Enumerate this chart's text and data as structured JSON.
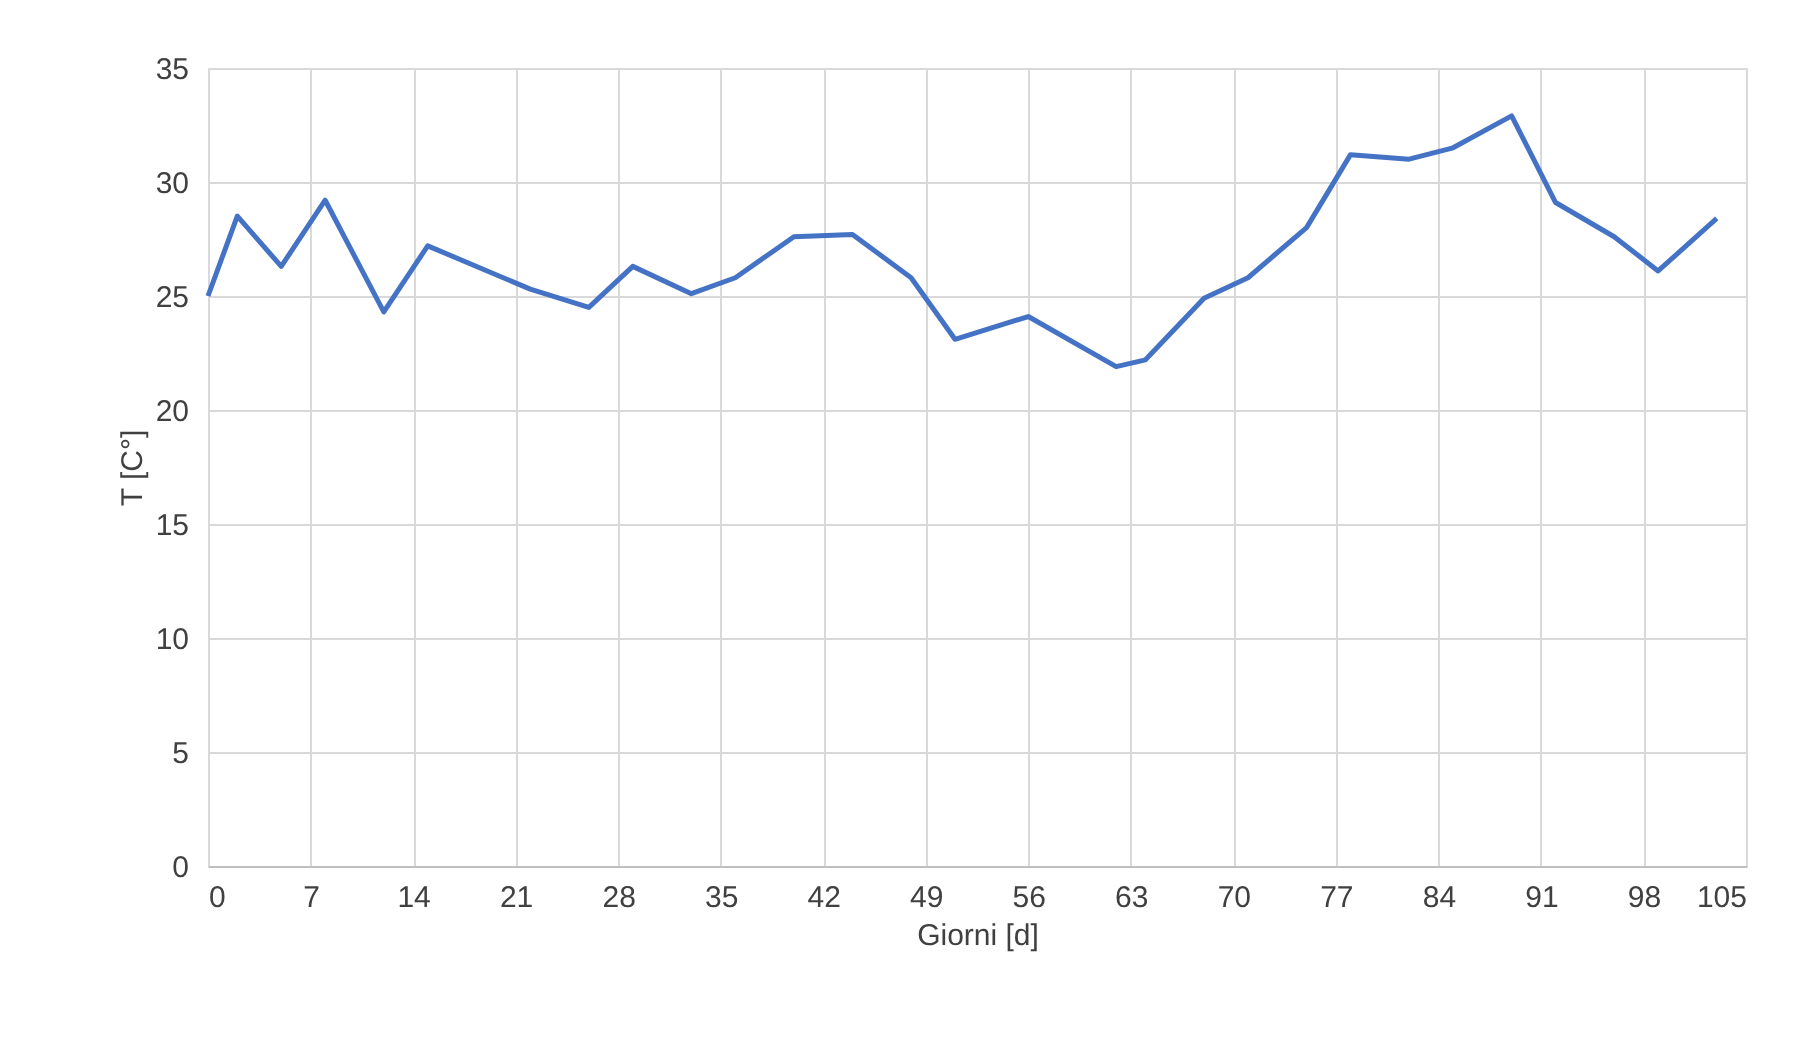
{
  "chart_data": {
    "type": "line",
    "xlabel": "Giorni [d]",
    "ylabel": "T [C°]",
    "x": [
      0,
      2,
      5,
      8,
      12,
      15,
      22,
      26,
      29,
      33,
      36,
      40,
      44,
      48,
      51,
      56,
      62,
      64,
      68,
      71,
      75,
      78,
      82,
      85,
      89,
      92,
      96,
      99,
      103
    ],
    "series": [
      {
        "color": "#4472c4",
        "values": [
          25,
          28.5,
          26.3,
          29.2,
          24.3,
          27.2,
          25.3,
          24.5,
          26.3,
          25.1,
          25.8,
          27.6,
          27.7,
          25.8,
          23.1,
          24.1,
          21.9,
          22.2,
          24.9,
          25.8,
          28,
          31.2,
          31,
          31.5,
          32.9,
          29.1,
          27.6,
          26.1,
          28.4
        ]
      }
    ],
    "xlim": [
      0,
      105
    ],
    "xticks": [
      0,
      7,
      14,
      21,
      28,
      35,
      42,
      49,
      56,
      63,
      70,
      77,
      84,
      91,
      98,
      105
    ],
    "ylim": [
      0,
      35
    ],
    "yticks": [
      0,
      5,
      10,
      15,
      20,
      25,
      30,
      35
    ],
    "grid": true,
    "marker": "none",
    "line_style": "solid"
  }
}
